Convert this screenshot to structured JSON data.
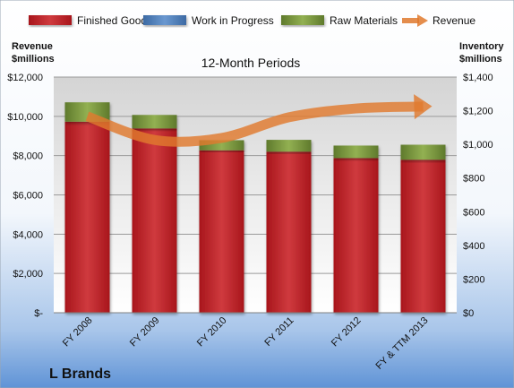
{
  "chart_data": {
    "type": "bar",
    "title": "",
    "subtitle": "12-Month Periods",
    "company": "L Brands",
    "categories": [
      "FY 2008",
      "FY 2009",
      "FY 2010",
      "FY 2011",
      "FY 2012",
      "FY & TTM 2013"
    ],
    "left_axis_label": "Revenue\n$millions",
    "right_axis_label": "Inventory\n$millions",
    "left_ticks": [
      "$-",
      "$2,000",
      "$4,000",
      "$6,000",
      "$8,000",
      "$10,000",
      "$12,000"
    ],
    "right_ticks": [
      "$0",
      "$200",
      "$400",
      "$600",
      "$800",
      "$1,000",
      "$1,200",
      "$1,400"
    ],
    "left_ylim": [
      0,
      12000
    ],
    "right_ylim": [
      0,
      1400
    ],
    "stacked": true,
    "grid": true,
    "legend_position": "top",
    "series": [
      {
        "name": "Finished Goods",
        "type": "bar",
        "axis": "right",
        "color": "#c0262b",
        "values": [
          1135,
          1095,
          965,
          957,
          919,
          909
        ]
      },
      {
        "name": "Work in Progress",
        "type": "bar",
        "axis": "right",
        "color": "#4f81bd",
        "values": [
          0,
          0,
          0,
          0,
          0,
          0
        ]
      },
      {
        "name": "Raw Materials",
        "type": "bar",
        "axis": "right",
        "color": "#77933c",
        "values": [
          115,
          80,
          60,
          70,
          74,
          89
        ]
      },
      {
        "name": "Revenue",
        "type": "line",
        "axis": "left",
        "color": "#e07a2e",
        "values": [
          10000,
          8800,
          8900,
          9950,
          10400,
          10500
        ]
      }
    ]
  }
}
